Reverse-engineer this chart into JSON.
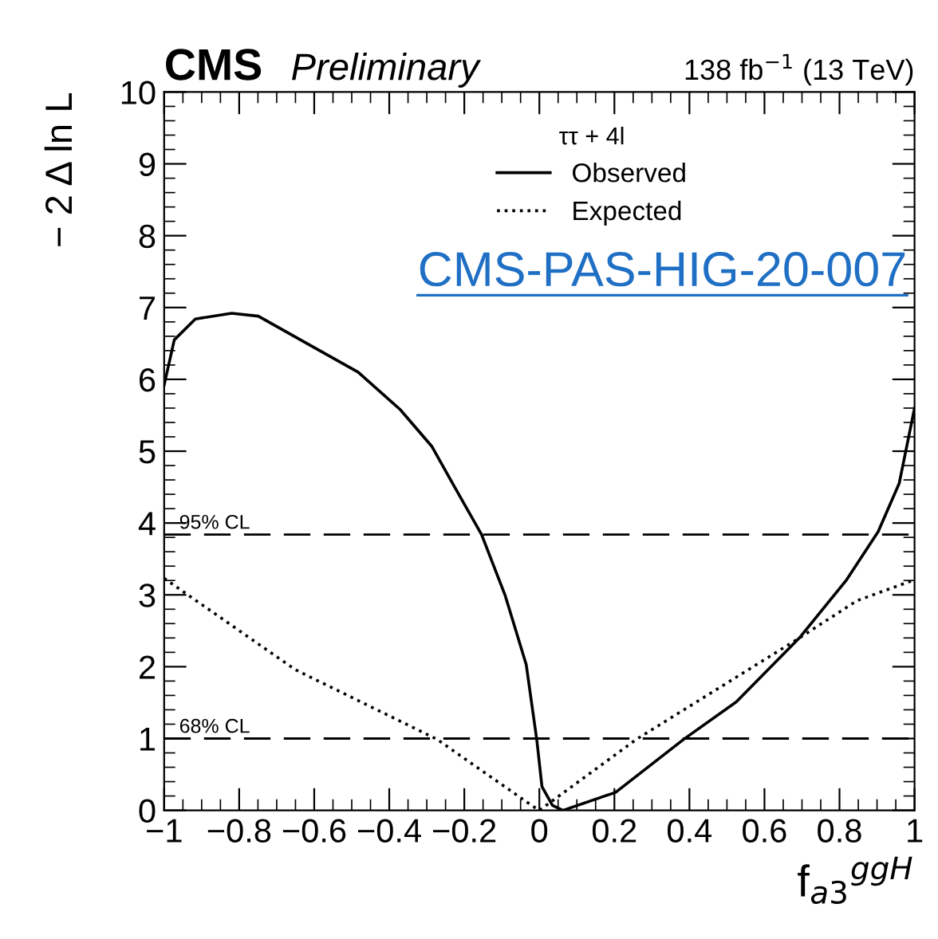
{
  "chart_data": {
    "type": "line",
    "title": "CMS",
    "subtitle": "Preliminary",
    "xlabel": "f$_{a3}$$^{ggH}$",
    "ylabel": "− 2 Δ ln L",
    "legend_title": "ττ + 4l",
    "legend": "top",
    "annotations": [
      "138 fb$^{−1}$ (13 TeV)",
      "CMS-PAS-HIG-20-007"
    ],
    "xlim": [
      -1,
      1
    ],
    "ylim": [
      0,
      10
    ],
    "xticks": [
      {
        "value": -1,
        "label": "−1"
      },
      {
        "value": -0.8,
        "label": "−0.8"
      },
      {
        "value": -0.6,
        "label": "−0.6"
      },
      {
        "value": -0.4,
        "label": "−0.4"
      },
      {
        "value": -0.2,
        "label": "−0.2"
      },
      0,
      0.2,
      0.4,
      0.6,
      0.8,
      1
    ],
    "yticks": [
      0,
      1,
      2,
      3,
      4,
      5,
      6,
      7,
      8,
      9,
      10
    ],
    "grid": false,
    "ref_lines": [
      {
        "axis": "y",
        "value": 3.84,
        "label": "95% CL",
        "color": "#000000",
        "line_style": "dashed"
      },
      {
        "axis": "y",
        "value": 1,
        "label": "68% CL",
        "color": "#000000",
        "line_style": "dashed"
      }
    ],
    "series": [
      {
        "name": "Observed",
        "color": "#000000",
        "line_style": "solid",
        "x": [
          -1.0,
          -0.973,
          -0.917,
          -0.82,
          -0.749,
          -0.609,
          -0.483,
          -0.371,
          -0.287,
          -0.231,
          -0.154,
          -0.091,
          -0.035,
          -0.007,
          0.007,
          0.035,
          0.063,
          0.203,
          0.385,
          0.525,
          0.693,
          0.819,
          0.903,
          0.959,
          1.0
        ],
        "values": [
          5.92,
          6.55,
          6.84,
          6.92,
          6.88,
          6.47,
          6.1,
          5.58,
          5.07,
          4.55,
          3.84,
          2.99,
          2.03,
          0.99,
          0.33,
          0.07,
          0.0,
          0.25,
          0.99,
          1.51,
          2.4,
          3.21,
          3.88,
          4.55,
          5.6
        ]
      },
      {
        "name": "Expected",
        "color": "#000000",
        "line_style": "dotted",
        "x": [
          -1.0,
          -0.651,
          -0.273,
          -0.021,
          0.0,
          0.259,
          0.693,
          0.847,
          1.0
        ],
        "values": [
          3.23,
          1.96,
          0.99,
          0.07,
          0.0,
          0.99,
          2.4,
          2.92,
          3.21
        ]
      }
    ]
  }
}
